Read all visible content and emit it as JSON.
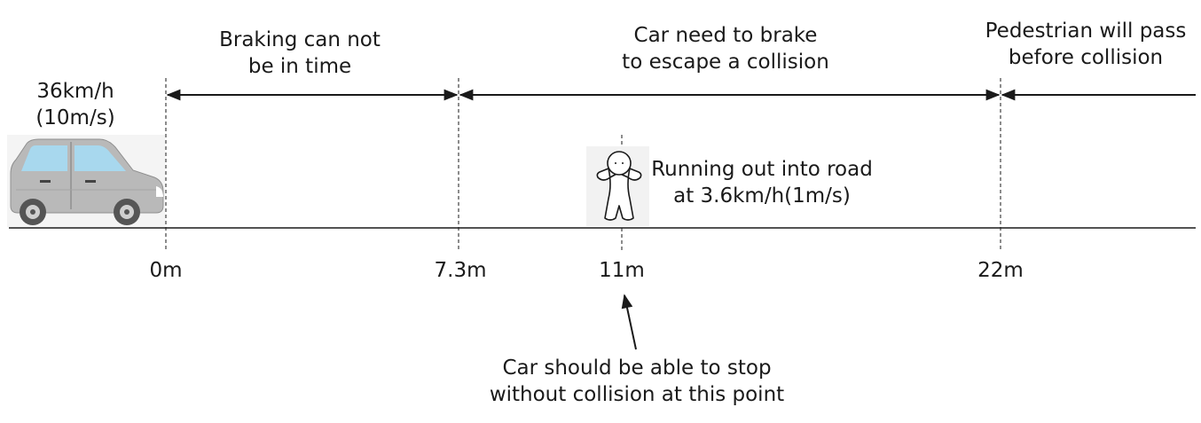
{
  "car": {
    "speed_line1": "36km/h",
    "speed_line2": "(10m/s)"
  },
  "zones": [
    {
      "line1": "Braking can not",
      "line2": "be in time"
    },
    {
      "line1": "Car need to brake",
      "line2": "to escape a collision"
    },
    {
      "line1": "Pedestrian will pass",
      "line2": "before collision"
    }
  ],
  "pedestrian": {
    "line1": "Running out into road",
    "line2": "at 3.6km/h(1m/s)"
  },
  "distances": [
    "0m",
    "7.3m",
    "11m",
    "22m"
  ],
  "stop_note": {
    "line1": "Car should be able to stop",
    "line2": "without collision at this point"
  },
  "colors": {
    "car_body": "#b9b9b9",
    "car_window": "#a8d8ee",
    "line": "#1a1a1a"
  }
}
